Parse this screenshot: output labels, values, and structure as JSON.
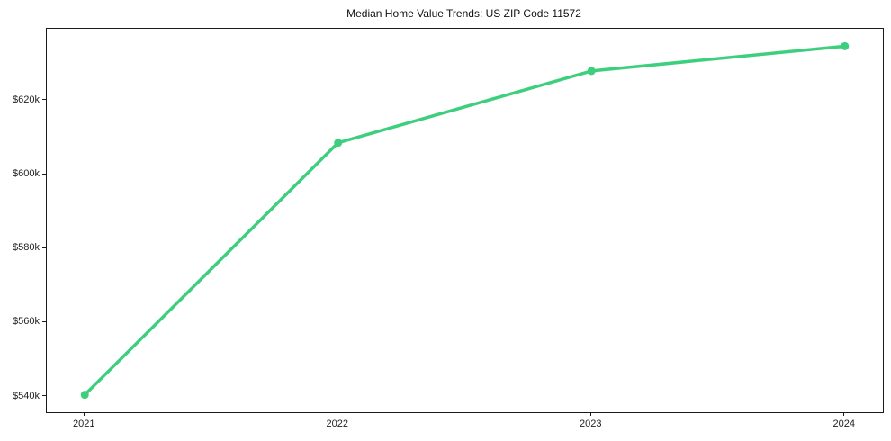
{
  "page": {
    "background": "#ffffff"
  },
  "chart_data": {
    "type": "line",
    "title": "Median Home Value Trends: US ZIP Code 11572",
    "categories": [
      "2021",
      "2022",
      "2023",
      "2024"
    ],
    "series": [
      {
        "name": "Median home value",
        "values": [
          540500,
          608600,
          628000,
          634700
        ],
        "color": "#3ecf7e",
        "marker": "circle",
        "line_width": 3.5,
        "marker_radius": 4.5
      }
    ],
    "xlabel": "",
    "ylabel": "",
    "x_tick_labels": [
      "2021",
      "2022",
      "2023",
      "2024"
    ],
    "y_ticks": [
      540000,
      560000,
      580000,
      600000,
      620000
    ],
    "y_tick_labels": [
      "$540k",
      "$560k",
      "$580k",
      "$600k",
      "$620k"
    ],
    "ylim": [
      535790,
      639410
    ],
    "xlim": [
      -0.15,
      3.15
    ],
    "grid": false,
    "legend_position": "none"
  },
  "style": {
    "line_color": "#3ecf7e",
    "spine_color": "#1a1a1a",
    "tick_color": "#1a1a1a",
    "title_color": "#111111",
    "tick_label_color": "#222222"
  }
}
